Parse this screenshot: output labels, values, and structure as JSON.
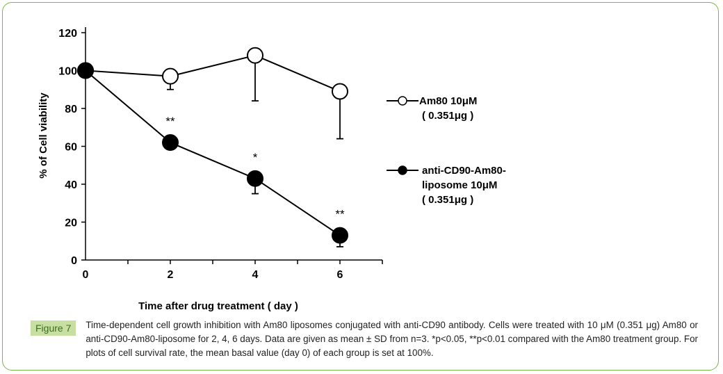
{
  "figure": {
    "label": "Figure 7",
    "caption": "Time-dependent cell growth inhibition with Am80 liposomes conjugated with anti-CD90 antibody. Cells were treated with 10 μM (0.351 μg) Am80 or anti-CD90-Am80-liposome for 2, 4, 6 days. Data are given as mean ± SD from n=3. *p<0.05, **p<0.01 compared with the Am80 treatment group. For plots of cell survival rate, the mean basal value (day 0) of each group is set at 100%."
  },
  "chart_data": {
    "type": "line",
    "title": "",
    "xlabel": "Time after drug treatment ( day )",
    "ylabel": "% of Cell viability",
    "x": [
      0,
      2,
      4,
      6
    ],
    "x_ticks": [
      "0",
      "2",
      "4",
      "6"
    ],
    "y_ticks": [
      "0",
      "20",
      "40",
      "60",
      "80",
      "100",
      "120"
    ],
    "xlim": [
      0,
      7
    ],
    "ylim": [
      0,
      120
    ],
    "grid": false,
    "legend_position": "right",
    "series": [
      {
        "name_lines": [
          "Am80 10μM",
          "( 0.351μg )"
        ],
        "marker": "open-circle",
        "values": [
          100,
          97,
          108,
          89
        ],
        "error_bars": [
          0,
          7,
          24,
          25
        ],
        "error_direction": [
          "none",
          "down",
          "down",
          "down"
        ]
      },
      {
        "name_lines": [
          "anti-CD90-Am80-",
          "liposome  10μM",
          "( 0.351μg )"
        ],
        "marker": "filled-circle",
        "values": [
          100,
          62,
          43,
          13
        ],
        "error_bars": [
          0,
          0,
          8,
          6
        ],
        "error_direction": [
          "none",
          "down",
          "down",
          "down"
        ],
        "annotations": [
          "",
          "**",
          "*",
          "**"
        ]
      }
    ]
  }
}
